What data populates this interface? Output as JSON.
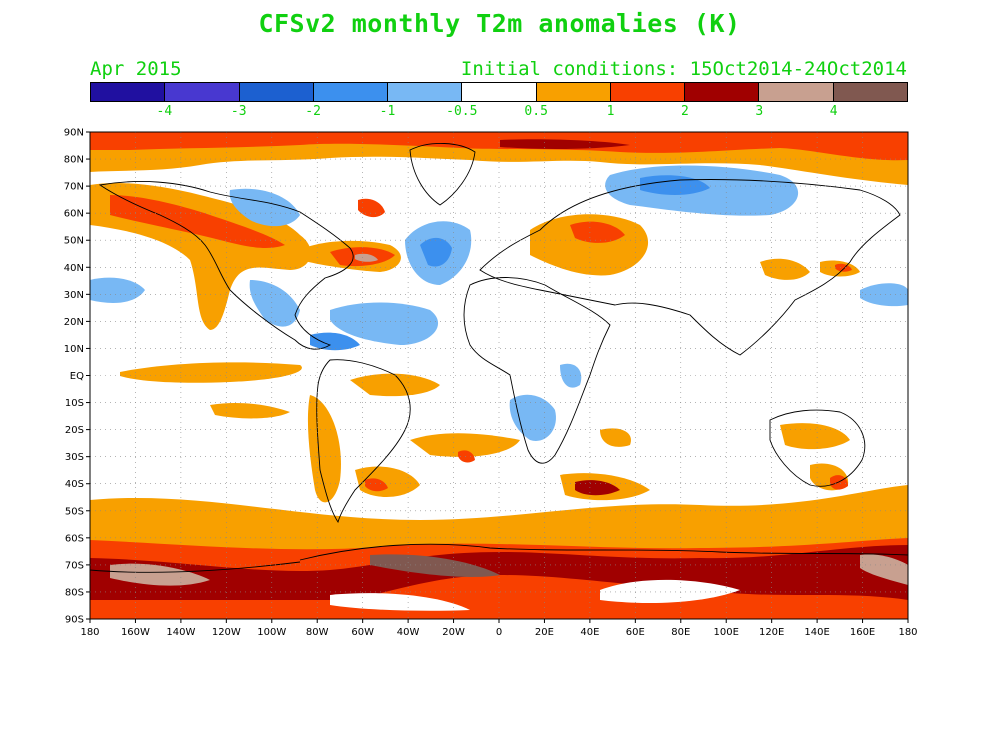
{
  "title": "CFSv2 monthly T2m anomalies (K)",
  "forecast_month": "Apr 2015",
  "initial_conditions": "Initial conditions: 15Oct2014-24Oct2014",
  "colorbar": {
    "colors": [
      "#2010a0",
      "#4838d0",
      "#1c60d0",
      "#3c90ee",
      "#78b8f4",
      "#ffffff",
      "#f8a000",
      "#f84000",
      "#a00000",
      "#c8a090",
      "#805850"
    ],
    "labels": [
      "-4",
      "-3",
      "-2",
      "-1",
      "-0.5",
      "0.5",
      "1",
      "2",
      "3",
      "4"
    ]
  },
  "lat_labels": [
    "90N",
    "80N",
    "70N",
    "60N",
    "50N",
    "40N",
    "30N",
    "20N",
    "10N",
    "EQ",
    "10S",
    "20S",
    "30S",
    "40S",
    "50S",
    "60S",
    "70S",
    "80S",
    "90S"
  ],
  "lon_labels": [
    "180",
    "160W",
    "140W",
    "120W",
    "100W",
    "80W",
    "60W",
    "40W",
    "20W",
    "0",
    "20E",
    "40E",
    "60E",
    "80E",
    "100E",
    "120E",
    "140E",
    "160E",
    "180"
  ]
}
